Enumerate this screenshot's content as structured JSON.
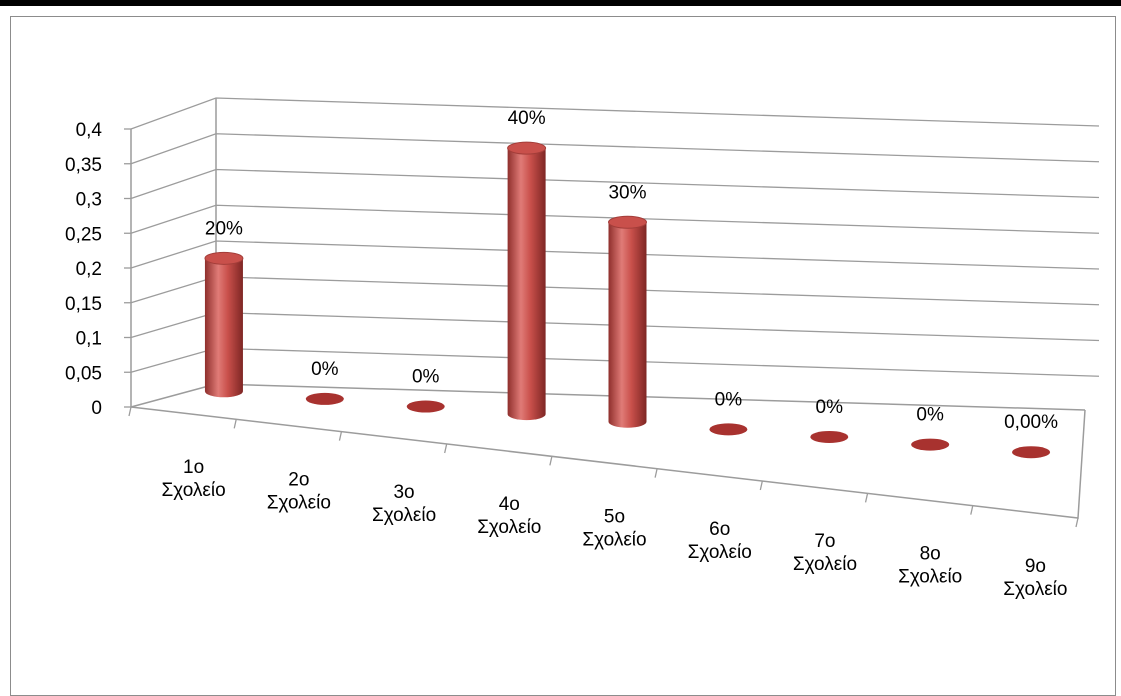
{
  "chart_data": {
    "type": "bar",
    "style": "3d-cylinder",
    "title": "",
    "xlabel": "",
    "ylabel": "",
    "ylim": [
      0,
      0.4
    ],
    "yticks": [
      "0",
      "0,05",
      "0,1",
      "0,15",
      "0,2",
      "0,25",
      "0,3",
      "0,35",
      "0,4"
    ],
    "grid": true,
    "legend": "none",
    "color": "#c0504d",
    "categories": [
      [
        "1ο",
        "Σχολείο"
      ],
      [
        "2ο",
        "Σχολείο"
      ],
      [
        "3ο",
        "Σχολείο"
      ],
      [
        "4ο",
        "Σχολείο"
      ],
      [
        "5ο",
        "Σχολείο"
      ],
      [
        "6ο",
        "Σχολείο"
      ],
      [
        "7ο",
        "Σχολείο"
      ],
      [
        "8ο",
        "Σχολείο"
      ],
      [
        "9ο",
        "Σχολείο"
      ]
    ],
    "values": [
      0.2,
      0,
      0,
      0.4,
      0.3,
      0,
      0,
      0,
      0
    ],
    "data_labels": [
      "20%",
      "0%",
      "0%",
      "40%",
      "30%",
      "0%",
      "0%",
      "0%",
      "0,00%"
    ]
  }
}
